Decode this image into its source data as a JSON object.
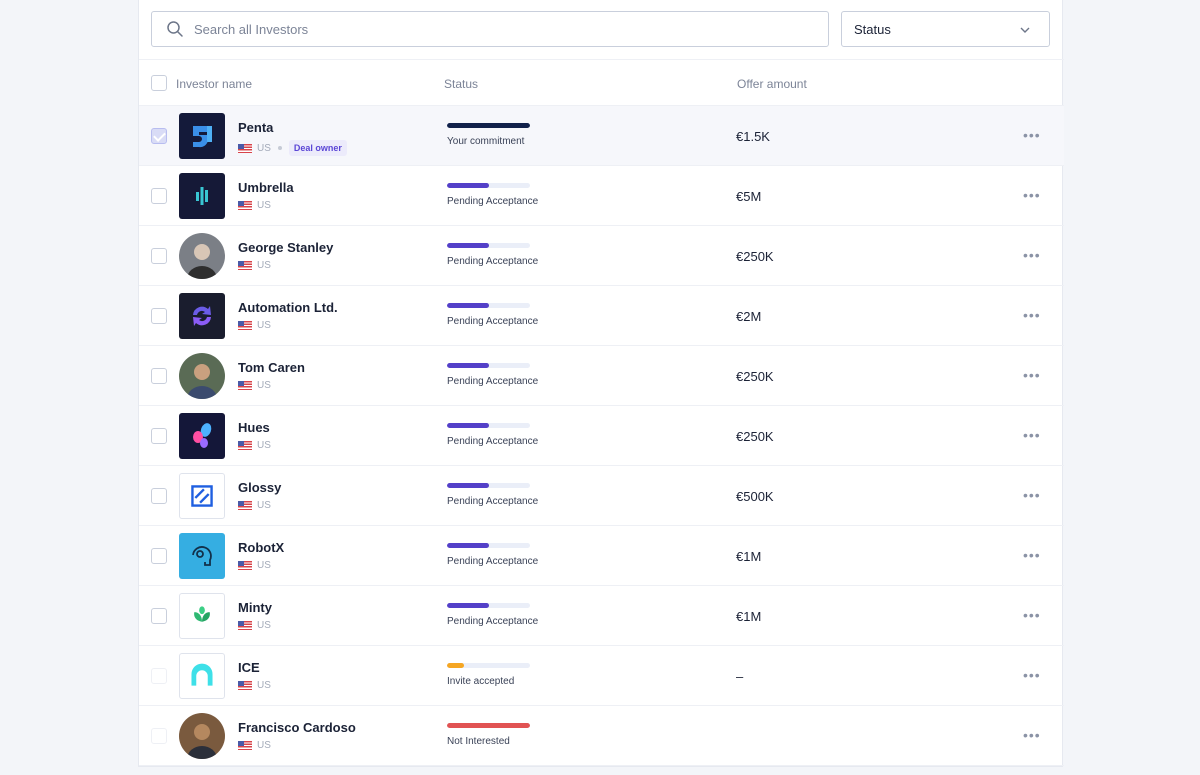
{
  "search": {
    "placeholder": "Search all Investors"
  },
  "status_filter": {
    "label": "Status"
  },
  "columns": {
    "name": "Investor name",
    "status": "Status",
    "offer": "Offer amount"
  },
  "colors": {
    "accent": "#5440c8",
    "commitment": "#11214a",
    "warning": "#f5a623",
    "danger": "#e15353",
    "track": "#eaeef8"
  },
  "investors": [
    {
      "name": "Penta",
      "country": "US",
      "badge": "Deal owner",
      "status": "Your commitment",
      "progress": 1.0,
      "bar_color": "#11214a",
      "offer": "€1.5K",
      "selected": true,
      "logo": "penta-logo"
    },
    {
      "name": "Umbrella",
      "country": "US",
      "badge": "",
      "status": "Pending Acceptance",
      "progress": 0.5,
      "bar_color": "#5440c8",
      "offer": "€5M",
      "logo": "umbrella-logo"
    },
    {
      "name": "George Stanley",
      "country": "US",
      "badge": "",
      "status": "Pending Acceptance",
      "progress": 0.5,
      "bar_color": "#5440c8",
      "offer": "€250K",
      "logo": "avatar"
    },
    {
      "name": "Automation Ltd.",
      "country": "US",
      "badge": "",
      "status": "Pending Acceptance",
      "progress": 0.5,
      "bar_color": "#5440c8",
      "offer": "€2M",
      "logo": "automation-logo"
    },
    {
      "name": "Tom Caren",
      "country": "US",
      "badge": "",
      "status": "Pending Acceptance",
      "progress": 0.5,
      "bar_color": "#5440c8",
      "offer": "€250K",
      "logo": "avatar"
    },
    {
      "name": "Hues",
      "country": "US",
      "badge": "",
      "status": "Pending Acceptance",
      "progress": 0.5,
      "bar_color": "#5440c8",
      "offer": "€250K",
      "logo": "hues-logo"
    },
    {
      "name": "Glossy",
      "country": "US",
      "badge": "",
      "status": "Pending Acceptance",
      "progress": 0.5,
      "bar_color": "#5440c8",
      "offer": "€500K",
      "logo": "glossy-logo"
    },
    {
      "name": "RobotX",
      "country": "US",
      "badge": "",
      "status": "Pending Acceptance",
      "progress": 0.5,
      "bar_color": "#5440c8",
      "offer": "€1M",
      "logo": "robotx-logo"
    },
    {
      "name": "Minty",
      "country": "US",
      "badge": "",
      "status": "Pending Acceptance",
      "progress": 0.5,
      "bar_color": "#5440c8",
      "offer": "€1M",
      "logo": "minty-logo"
    },
    {
      "name": "ICE",
      "country": "US",
      "badge": "",
      "status": "Invite accepted",
      "progress": 0.2,
      "bar_color": "#f5a623",
      "offer": "–",
      "logo": "ice-logo"
    },
    {
      "name": "Francisco Cardoso",
      "country": "US",
      "badge": "",
      "status": "Not Interested",
      "progress": 1.0,
      "bar_color": "#e15353",
      "offer": "",
      "logo": "avatar"
    }
  ]
}
